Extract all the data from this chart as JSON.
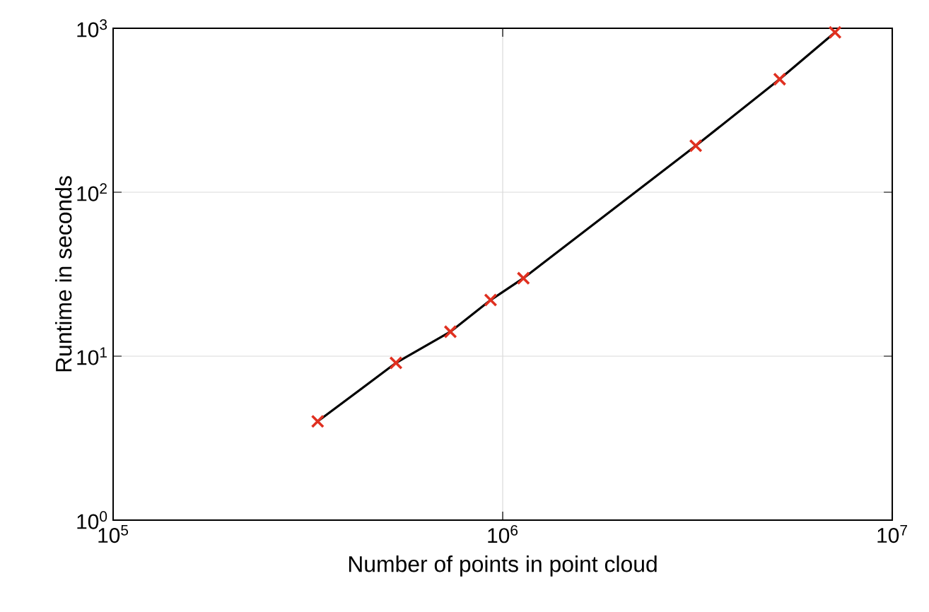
{
  "chart_data": {
    "type": "line",
    "xlabel": "Number of points in point cloud",
    "ylabel": "Runtime in seconds",
    "log": "xy",
    "grid": true,
    "marker": "cross",
    "line_style": "solid",
    "xlim": [
      100000,
      10000000
    ],
    "ylim": [
      1,
      1000
    ],
    "xticks": [
      {
        "value": 100000,
        "label": "10$^{5}$"
      },
      {
        "value": 1000000,
        "label": "10$^{6}$"
      },
      {
        "value": 10000000,
        "label": "10$^{7}$"
      }
    ],
    "yticks": [
      {
        "value": 1,
        "label": "10$^{0}$"
      },
      {
        "value": 10,
        "label": "10$^{1}$"
      },
      {
        "value": 100,
        "label": "10$^{2}$"
      },
      {
        "value": 1000,
        "label": "10$^{3}$"
      }
    ],
    "x": [
      335000,
      532000,
      734000,
      931000,
      1130000,
      3130000,
      5140000,
      7130000
    ],
    "series": [
      {
        "color": "#000000",
        "colors": [
          "#e03020",
          "#e03020",
          "#e03020",
          "#e03020",
          "#e03020",
          "#e03020",
          "#e03020",
          "#e03020"
        ],
        "values": [
          4.0,
          9.1,
          14.1,
          22.0,
          29.9,
          192,
          489,
          944
        ]
      }
    ]
  }
}
